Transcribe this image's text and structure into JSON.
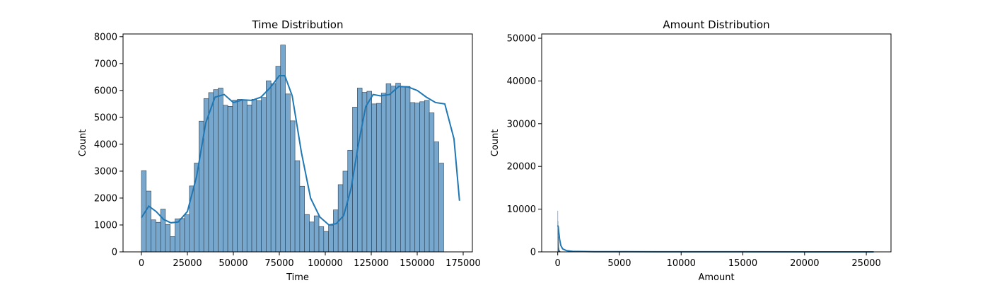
{
  "chart_data": [
    {
      "type": "histogram",
      "title": "Time Distribution",
      "xlabel": "Time",
      "ylabel": "Count",
      "xlim": [
        -10000,
        180000
      ],
      "ylim": [
        0,
        8100
      ],
      "xticks": [
        0,
        25000,
        50000,
        75000,
        100000,
        125000,
        150000,
        175000
      ],
      "yticks": [
        0,
        1000,
        2000,
        3000,
        4000,
        5000,
        6000,
        7000,
        8000
      ],
      "bin_start": 0,
      "bin_width": 2609.5,
      "counts": [
        3020,
        2260,
        1190,
        1100,
        1590,
        1020,
        570,
        1230,
        1240,
        1380,
        2450,
        3300,
        4860,
        5700,
        5920,
        6030,
        6090,
        5450,
        5410,
        5640,
        5670,
        5650,
        5460,
        5670,
        5620,
        5740,
        6360,
        6250,
        6900,
        7690,
        5870,
        4870,
        3390,
        2440,
        1390,
        1110,
        1340,
        940,
        760,
        990,
        1560,
        2500,
        3000,
        3780,
        5380,
        6090,
        5930,
        5970,
        5500,
        5520,
        5900,
        6250,
        6160,
        6270,
        6130,
        6150,
        5550,
        5530,
        5580,
        5630,
        5170,
        4090,
        3300
      ],
      "kde": {
        "x": [
          0,
          4000,
          8000,
          12000,
          16000,
          20000,
          25000,
          30000,
          35000,
          40000,
          45000,
          50000,
          55000,
          60000,
          65000,
          70000,
          75000,
          78000,
          82000,
          87000,
          92000,
          97000,
          102000,
          106000,
          110000,
          114000,
          118000,
          122000,
          126000,
          130000,
          135000,
          140000,
          145000,
          150000,
          155000,
          160000,
          165000,
          170000,
          173000
        ],
        "y": [
          1270,
          1700,
          1500,
          1210,
          1080,
          1110,
          1500,
          2800,
          4800,
          5750,
          5850,
          5550,
          5650,
          5630,
          5750,
          6100,
          6550,
          6550,
          5800,
          3700,
          2000,
          1300,
          1000,
          1050,
          1350,
          2350,
          4000,
          5400,
          5850,
          5800,
          5850,
          6150,
          6130,
          6000,
          5750,
          5550,
          5500,
          4200,
          1900
        ]
      },
      "colors": {
        "bar_fill": "#77a7cc",
        "bar_edge": "#2c3e50",
        "kde": "#1f77b4"
      }
    },
    {
      "type": "histogram",
      "title": "Amount Distribution",
      "xlabel": "Amount",
      "ylabel": "Count",
      "xlim": [
        -1300,
        27000
      ],
      "ylim": [
        0,
        51000
      ],
      "xticks": [
        0,
        5000,
        10000,
        15000,
        20000,
        25000
      ],
      "yticks": [
        0,
        10000,
        20000,
        30000,
        40000,
        50000
      ],
      "bin_start": 0,
      "bin_width": 10,
      "counts_head": [
        9600,
        7200,
        5600,
        4400,
        3500,
        2800,
        2200,
        1700,
        1300,
        1000,
        800,
        600,
        480,
        380,
        300,
        240,
        190,
        150,
        120,
        100
      ],
      "kde": {
        "x": [
          0,
          40,
          80,
          150,
          250,
          400,
          700,
          1200,
          3000,
          8000,
          15000,
          25600
        ],
        "y": [
          6200,
          5900,
          4800,
          3000,
          1500,
          700,
          300,
          120,
          50,
          25,
          12,
          5
        ]
      },
      "colors": {
        "bar_fill": "#77a7cc",
        "bar_edge": "#2c3e50",
        "kde": "#1f77b4"
      }
    }
  ]
}
